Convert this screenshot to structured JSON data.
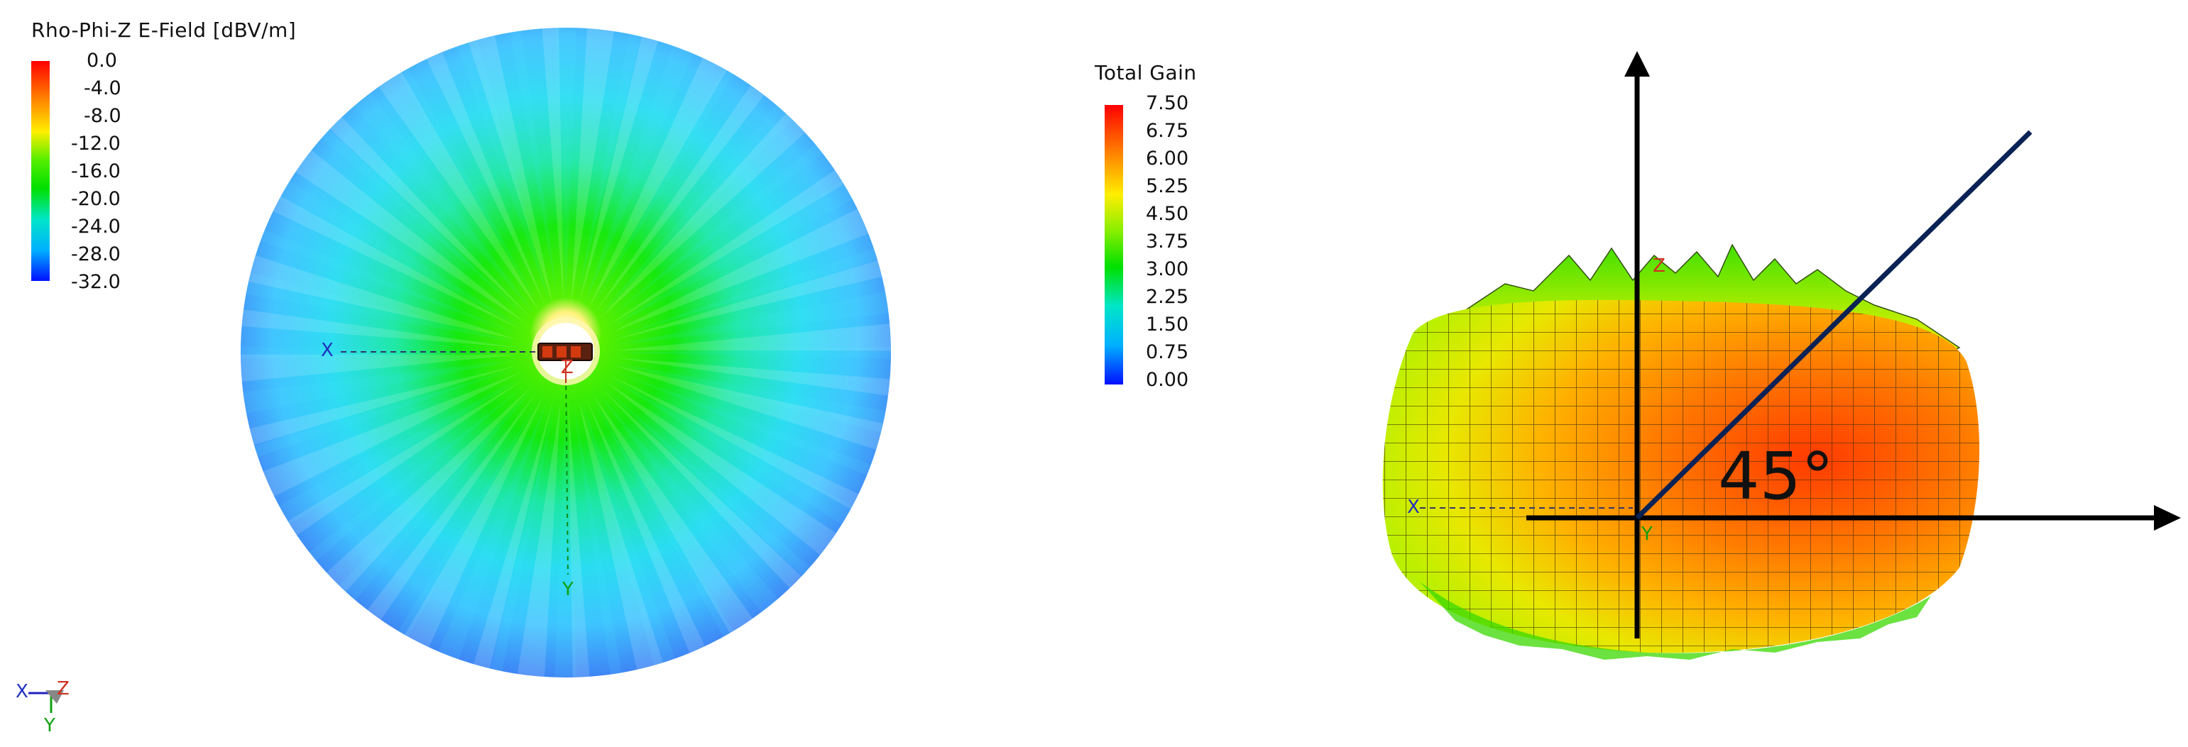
{
  "left_panel": {
    "legend_title": "Rho-Phi-Z E-Field [dBV/m]",
    "legend_ticks": [
      "0.0",
      "-4.0",
      "-8.0",
      "-12.0",
      "-16.0",
      "-20.0",
      "-24.0",
      "-28.0",
      "-32.0"
    ],
    "axis_labels": {
      "x": "X",
      "y": "Y",
      "z": "Z"
    },
    "triad_labels": {
      "x": "X",
      "y": "Y",
      "z": "Z"
    }
  },
  "right_panel": {
    "legend_title": "Total Gain",
    "legend_ticks": [
      "7.50",
      "6.75",
      "6.00",
      "5.25",
      "4.50",
      "3.75",
      "3.00",
      "2.25",
      "1.50",
      "0.75",
      "0.00"
    ],
    "axis_labels": {
      "x": "X",
      "y": "Y",
      "z": "Z"
    },
    "angle_label": "45°"
  },
  "colors": {
    "scale_top": "#ff0000",
    "scale_orange": "#ff8800",
    "scale_yellow": "#ffee00",
    "scale_green": "#00e000",
    "scale_cyan": "#00e0d8",
    "scale_blue": "#0010ff",
    "axis_line": "#000000",
    "angle_line": "#0a2255"
  }
}
